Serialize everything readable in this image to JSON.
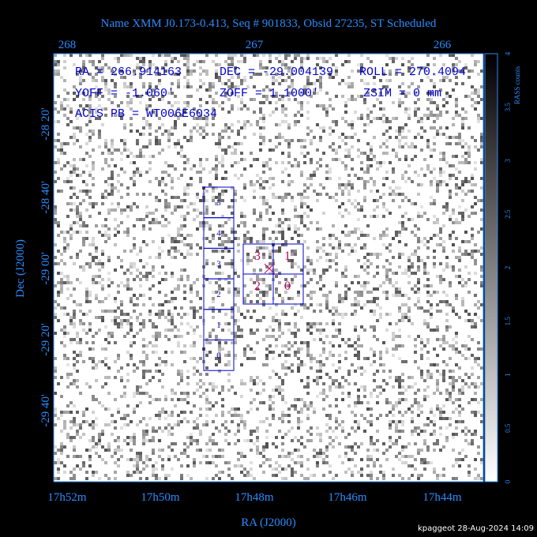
{
  "title": "Name XMM J0.173-0.413, Seq # 901833, Obsid 27235, ST Scheduled",
  "top_ticks": [
    "268",
    "267",
    "266"
  ],
  "bottom_ticks": [
    "17h52m",
    "17h50m",
    "17h48m",
    "17h46m",
    "17h44m"
  ],
  "left_ticks": [
    "-28 20'",
    "-28 40'",
    "-29 00'",
    "-29 20'",
    "-29 40'"
  ],
  "x_label": "RA (J2000)",
  "y_label": "Dec (J2000)",
  "annotations": [
    "RA = 266.914163",
    "DEC = -29.004139",
    "ROLL = 270.4094",
    "YOFF = -1.060'",
    "ZOFF = 1.1000'",
    "ZSIM = 0 mm",
    "ACIS PB = WT006E6034"
  ],
  "s_chips": [
    "5",
    "4",
    "3",
    "2",
    "1",
    "0"
  ],
  "i_chips": [
    "3",
    "1",
    "2",
    "0"
  ],
  "colorbar": {
    "label": "RASS counts",
    "ticks": [
      "0",
      "0.5",
      "1",
      "1.5",
      "2",
      "2.5",
      "3",
      "3.5",
      "4"
    ]
  },
  "footer": "kpaggeot 28-Aug-2024 14:09"
}
